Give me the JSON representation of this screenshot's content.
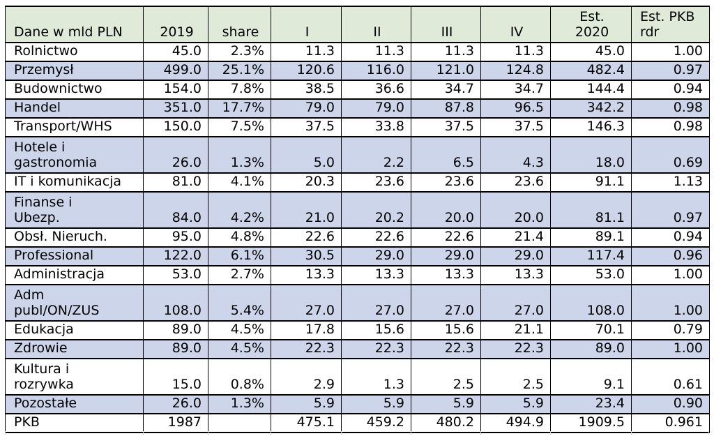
{
  "table": {
    "header": {
      "col1": "Dane w mld PLN",
      "col2": "2019",
      "col3": "share",
      "col4": "I",
      "col5": "II",
      "col6": "III",
      "col7": "IV",
      "col8": "Est.\n2020",
      "col9": "Est. PKB\nrdr"
    },
    "rows": [
      {
        "name": "Rolnictwo",
        "shaded": false,
        "values": [
          "45.0",
          "2.3%",
          "11.3",
          "11.3",
          "11.3",
          "11.3",
          "45.0",
          "1.00"
        ]
      },
      {
        "name": "Przemysł",
        "shaded": true,
        "values": [
          "499.0",
          "25.1%",
          "120.6",
          "116.0",
          "121.0",
          "124.8",
          "482.4",
          "0.97"
        ]
      },
      {
        "name": "Budownictwo",
        "shaded": false,
        "values": [
          "154.0",
          "7.8%",
          "38.5",
          "36.6",
          "34.7",
          "34.7",
          "144.4",
          "0.94"
        ]
      },
      {
        "name": "Handel",
        "shaded": true,
        "values": [
          "351.0",
          "17.7%",
          "79.0",
          "79.0",
          "87.8",
          "96.5",
          "342.2",
          "0.98"
        ]
      },
      {
        "name": "Transport/WHS",
        "shaded": false,
        "values": [
          "150.0",
          "7.5%",
          "37.5",
          "33.8",
          "37.5",
          "37.5",
          "146.3",
          "0.98"
        ]
      },
      {
        "name": "Hotele i\ngastronomia",
        "shaded": true,
        "values": [
          "26.0",
          "1.3%",
          "5.0",
          "2.2",
          "6.5",
          "4.3",
          "18.0",
          "0.69"
        ]
      },
      {
        "name": "IT i komunikacja",
        "shaded": false,
        "values": [
          "81.0",
          "4.1%",
          "20.3",
          "23.6",
          "23.6",
          "23.6",
          "91.1",
          "1.13"
        ]
      },
      {
        "name": "Finanse i\nUbezp.",
        "shaded": true,
        "values": [
          "84.0",
          "4.2%",
          "21.0",
          "20.2",
          "20.0",
          "20.0",
          "81.1",
          "0.97"
        ]
      },
      {
        "name": "Obsł. Nieruch.",
        "shaded": false,
        "values": [
          "95.0",
          "4.8%",
          "22.6",
          "22.6",
          "22.6",
          "21.4",
          "89.1",
          "0.94"
        ]
      },
      {
        "name": "Professional",
        "shaded": true,
        "values": [
          "122.0",
          "6.1%",
          "30.5",
          "29.0",
          "29.0",
          "29.0",
          "117.4",
          "0.96"
        ]
      },
      {
        "name": "Administracja",
        "shaded": false,
        "values": [
          "53.0",
          "2.7%",
          "13.3",
          "13.3",
          "13.3",
          "13.3",
          "53.0",
          "1.00"
        ]
      },
      {
        "name": "Adm\npubl/ON/ZUS",
        "shaded": true,
        "values": [
          "108.0",
          "5.4%",
          "27.0",
          "27.0",
          "27.0",
          "27.0",
          "108.0",
          "1.00"
        ]
      },
      {
        "name": "Edukacja",
        "shaded": false,
        "values": [
          "89.0",
          "4.5%",
          "17.8",
          "15.6",
          "15.6",
          "21.1",
          "70.1",
          "0.79"
        ]
      },
      {
        "name": "Zdrowie",
        "shaded": true,
        "values": [
          "89.0",
          "4.5%",
          "22.3",
          "22.3",
          "22.3",
          "22.3",
          "89.0",
          "1.00"
        ]
      },
      {
        "name": "Kultura i\nrozrywka",
        "shaded": false,
        "values": [
          "15.0",
          "0.8%",
          "2.9",
          "1.3",
          "2.5",
          "2.5",
          "9.1",
          "0.61"
        ]
      },
      {
        "name": "Pozostałe",
        "shaded": true,
        "values": [
          "26.0",
          "1.3%",
          "5.9",
          "5.9",
          "5.9",
          "5.9",
          "23.4",
          "0.90"
        ]
      },
      {
        "name": "PKB",
        "shaded": false,
        "values": [
          "1987",
          "",
          "475.1",
          "459.2",
          "480.2",
          "494.9",
          "1909.5",
          "0.961"
        ]
      }
    ]
  },
  "colors": {
    "header_bg": "#e0ead8",
    "band_bg": "#ccd5ea",
    "row_bg": "#ffffff",
    "border": "#000000",
    "text": "#000000",
    "gridline": "#c9c9c9"
  }
}
